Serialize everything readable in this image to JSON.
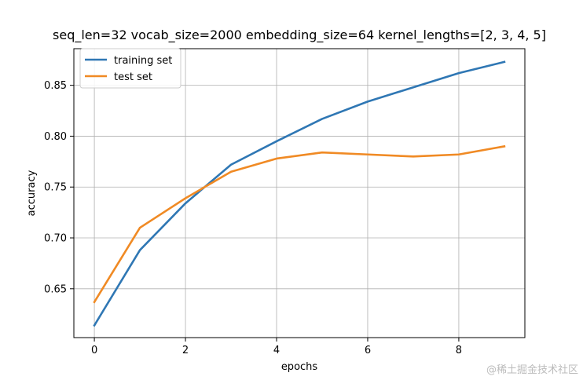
{
  "chart_data": {
    "type": "line",
    "title": "seq_len=32 vocab_size=2000 embedding_size=64 kernel_lengths=[2, 3, 4, 5]",
    "xlabel": "epochs",
    "ylabel": "accuracy",
    "x": [
      0,
      1,
      2,
      3,
      4,
      5,
      6,
      7,
      8,
      9
    ],
    "xlim": [
      -0.45,
      9.45
    ],
    "ylim": [
      0.602,
      0.886
    ],
    "xticks": [
      0,
      2,
      4,
      6,
      8
    ],
    "yticks": [
      0.65,
      0.7,
      0.75,
      0.8,
      0.85
    ],
    "ytick_labels": [
      "0.65",
      "0.70",
      "0.75",
      "0.80",
      "0.85"
    ],
    "grid": true,
    "legend_position": "top-left",
    "series": [
      {
        "name": "training set",
        "color": "#2f77b4",
        "values": [
          0.614,
          0.688,
          0.734,
          0.772,
          0.795,
          0.817,
          0.834,
          0.848,
          0.862,
          0.873
        ]
      },
      {
        "name": "test set",
        "color": "#f08a24",
        "values": [
          0.637,
          0.71,
          0.739,
          0.765,
          0.778,
          0.784,
          0.782,
          0.78,
          0.782,
          0.79
        ]
      }
    ]
  },
  "watermark": "@稀土掘金技术社区"
}
